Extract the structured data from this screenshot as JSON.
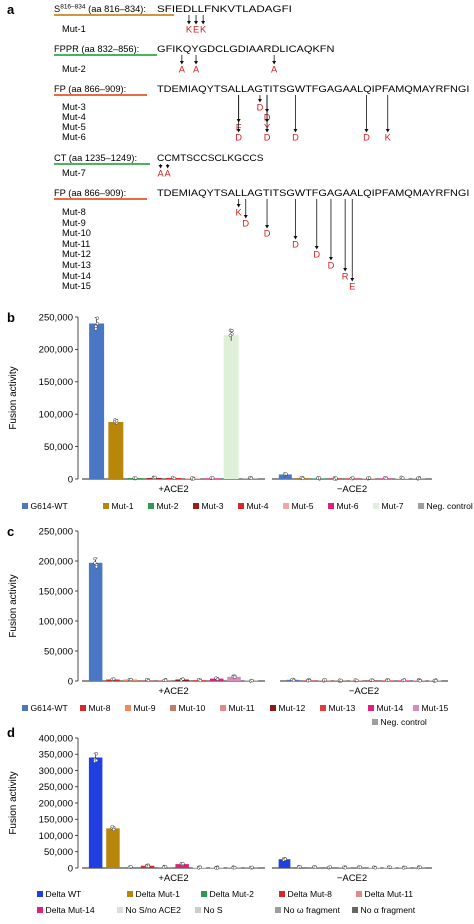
{
  "panel_a": {
    "letter": "a",
    "groups": [
      {
        "id": "s816",
        "region": "S",
        "region_sup": "816–834",
        "region_rest": " (aa 816–834):",
        "color": "#c98a22",
        "sequence": "SFIEDLLFNKVTLADAGFI",
        "seq_start": 816,
        "rows": [
          {
            "label": "Mut-1",
            "subs": [
              {
                "pos": 820,
                "to": "K"
              },
              {
                "pos": 821,
                "to": "E"
              },
              {
                "pos": 822,
                "to": "K"
              }
            ]
          }
        ]
      },
      {
        "id": "fppr",
        "region": "FPPR (aa 832–856):",
        "color": "#2fa84a",
        "sequence": "GFIKQYGDCLGDIAARDLICAQKFN",
        "seq_start": 832,
        "rows": [
          {
            "label": "Mut-2",
            "subs": [
              {
                "pos": 835,
                "to": "A"
              },
              {
                "pos": 837,
                "to": "A"
              },
              {
                "pos": 848,
                "to": "A"
              }
            ]
          }
        ]
      },
      {
        "id": "fp1",
        "region": "FP (aa 866–909):",
        "color": "#e2572a",
        "sequence": "TDEMIAQYTSALLAGTITSGWTFGAGAALQIPFAMQMAYRFNGI",
        "seq_start": 866,
        "rows": [
          {
            "label": "Mut-3",
            "subs": [
              {
                "pos": 880,
                "to": "D"
              }
            ]
          },
          {
            "label": "Mut-4",
            "subs": [
              {
                "pos": 881,
                "to": "D"
              }
            ]
          },
          {
            "label": "Mut-5",
            "subs": [
              {
                "pos": 877,
                "to": "F"
              },
              {
                "pos": 881,
                "to": "Y"
              }
            ]
          },
          {
            "label": "Mut-6",
            "subs": [
              {
                "pos": 877,
                "to": "D"
              },
              {
                "pos": 881,
                "to": "D"
              },
              {
                "pos": 885,
                "to": "D"
              },
              {
                "pos": 895,
                "to": "D"
              },
              {
                "pos": 898,
                "to": "K"
              }
            ]
          }
        ]
      },
      {
        "id": "ct",
        "region": "CT (aa 1235–1249):",
        "color": "#2fa84a",
        "sequence": "CCMTSCCSCLKGCCS",
        "seq_start": 1235,
        "rows": [
          {
            "label": "Mut-7",
            "subs": [
              {
                "pos": 1235,
                "to": "A"
              },
              {
                "pos": 1236,
                "to": "A"
              }
            ]
          }
        ]
      },
      {
        "id": "fp2",
        "region": "FP (aa 866–909):",
        "color": "#e2572a",
        "sequence": "TDEMIAQYTSALLAGTITSGWTFGAGAALQIPFAMQMAYRFNGI",
        "seq_start": 866,
        "rows": [
          {
            "label": "Mut-8",
            "subs": [
              {
                "pos": 877,
                "to": "K"
              }
            ]
          },
          {
            "label": "Mut-9",
            "subs": [
              {
                "pos": 878,
                "to": "D"
              }
            ]
          },
          {
            "label": "Mut-10",
            "subs": [
              {
                "pos": 881,
                "to": "D"
              }
            ]
          },
          {
            "label": "Mut-11",
            "subs": [
              {
                "pos": 885,
                "to": "D"
              }
            ]
          },
          {
            "label": "Mut-12",
            "subs": [
              {
                "pos": 888,
                "to": "D"
              }
            ]
          },
          {
            "label": "Mut-13",
            "subs": [
              {
                "pos": 890,
                "to": "D"
              }
            ]
          },
          {
            "label": "Mut-14",
            "subs": [
              {
                "pos": 892,
                "to": "R"
              }
            ]
          },
          {
            "label": "Mut-15",
            "subs": [
              {
                "pos": 893,
                "to": "E"
              }
            ]
          }
        ]
      }
    ]
  },
  "chart_data": [
    {
      "panel": "b",
      "type": "bar",
      "ylabel": "Fusion activity",
      "ylim": [
        0,
        250000
      ],
      "yticks": [
        0,
        50000,
        100000,
        150000,
        200000,
        250000
      ],
      "ytick_labels": [
        "0",
        "50,000",
        "100,000",
        "150,000",
        "200,000",
        "250,000"
      ],
      "groups": [
        "+ACE2",
        "−ACE2"
      ],
      "series": [
        {
          "name": "G614-WT",
          "color": "#4a77c4",
          "values": [
            240000,
            7000
          ]
        },
        {
          "name": "Mut-1",
          "color": "#b8860b",
          "values": [
            88000,
            1500
          ]
        },
        {
          "name": "Mut-2",
          "color": "#2e9c4e",
          "values": [
            1500,
            1000
          ]
        },
        {
          "name": "Mut-3",
          "color": "#9c1c1c",
          "values": [
            1500,
            1000
          ]
        },
        {
          "name": "Mut-4",
          "color": "#d62828",
          "values": [
            1500,
            1000
          ]
        },
        {
          "name": "Mut-5",
          "color": "#f2a7a7",
          "values": [
            1000,
            1000
          ]
        },
        {
          "name": "Mut-6",
          "color": "#e0207a",
          "values": [
            1000,
            1000
          ]
        },
        {
          "name": "Mut-7",
          "color": "#dff0d8",
          "values": [
            222000,
            1500
          ]
        },
        {
          "name": "Neg. control",
          "color": "#9e9e9e",
          "values": [
            1000,
            1000
          ]
        }
      ]
    },
    {
      "panel": "c",
      "type": "bar",
      "ylabel": "Fusion activity",
      "ylim": [
        0,
        250000
      ],
      "yticks": [
        0,
        50000,
        100000,
        150000,
        200000,
        250000
      ],
      "ytick_labels": [
        "0",
        "50,000",
        "100,000",
        "150,000",
        "200,000",
        "250,000"
      ],
      "groups": [
        "+ACE2",
        "−ACE2"
      ],
      "series": [
        {
          "name": "G614-WT",
          "color": "#4a77c4",
          "values": [
            197000,
            2000
          ]
        },
        {
          "name": "Mut-8",
          "color": "#d62828",
          "values": [
            2500,
            1000
          ]
        },
        {
          "name": "Mut-9",
          "color": "#f08a5d",
          "values": [
            2500,
            1000
          ]
        },
        {
          "name": "Mut-10",
          "color": "#c47a6a",
          "values": [
            1500,
            1000
          ]
        },
        {
          "name": "Mut-11",
          "color": "#e08b8b",
          "values": [
            1500,
            1000
          ]
        },
        {
          "name": "Mut-12",
          "color": "#8b1a1a",
          "values": [
            2500,
            1000
          ]
        },
        {
          "name": "Mut-13",
          "color": "#e63a3a",
          "values": [
            1500,
            1000
          ]
        },
        {
          "name": "Mut-14",
          "color": "#e0207a",
          "values": [
            4000,
            1000
          ]
        },
        {
          "name": "Mut-15",
          "color": "#d98bc0",
          "values": [
            7000,
            1000
          ]
        },
        {
          "name": "Neg. control",
          "color": "#9e9e9e",
          "values": [
            800,
            800
          ]
        }
      ]
    },
    {
      "panel": "d",
      "type": "bar",
      "ylabel": "Fusion activity",
      "ylim": [
        0,
        400000
      ],
      "yticks": [
        0,
        50000,
        100000,
        150000,
        200000,
        250000,
        300000,
        350000,
        400000
      ],
      "ytick_labels": [
        "0",
        "50,000",
        "100,000",
        "150,000",
        "200,000",
        "250,000",
        "300,000",
        "350,000",
        "400,000"
      ],
      "groups": [
        "+ACE2",
        "−ACE2"
      ],
      "series": [
        {
          "name": "Delta WT",
          "color": "#1f3fe0",
          "values": [
            340000,
            27000
          ]
        },
        {
          "name": "Delta Mut-1",
          "color": "#b8860b",
          "values": [
            122000,
            3000
          ]
        },
        {
          "name": "Delta Mut-2",
          "color": "#2e9c4e",
          "values": [
            2500,
            2000
          ]
        },
        {
          "name": "Delta Mut-8",
          "color": "#d62828",
          "values": [
            7000,
            2000
          ]
        },
        {
          "name": "Delta Mut-11",
          "color": "#e08b8b",
          "values": [
            3000,
            2000
          ]
        },
        {
          "name": "Delta Mut-14",
          "color": "#e0207a",
          "values": [
            12000,
            2000
          ]
        },
        {
          "name": "No S/no ACE2",
          "color": "#dddddd",
          "values": [
            1500,
            1500
          ]
        },
        {
          "name": "No S",
          "color": "#cccccc",
          "values": [
            1500,
            1500
          ]
        },
        {
          "name": "No ω fragment",
          "color": "#9e9e9e",
          "values": [
            1500,
            1500
          ]
        },
        {
          "name": "No α fragment",
          "color": "#666666",
          "values": [
            1500,
            1500
          ]
        }
      ]
    }
  ]
}
